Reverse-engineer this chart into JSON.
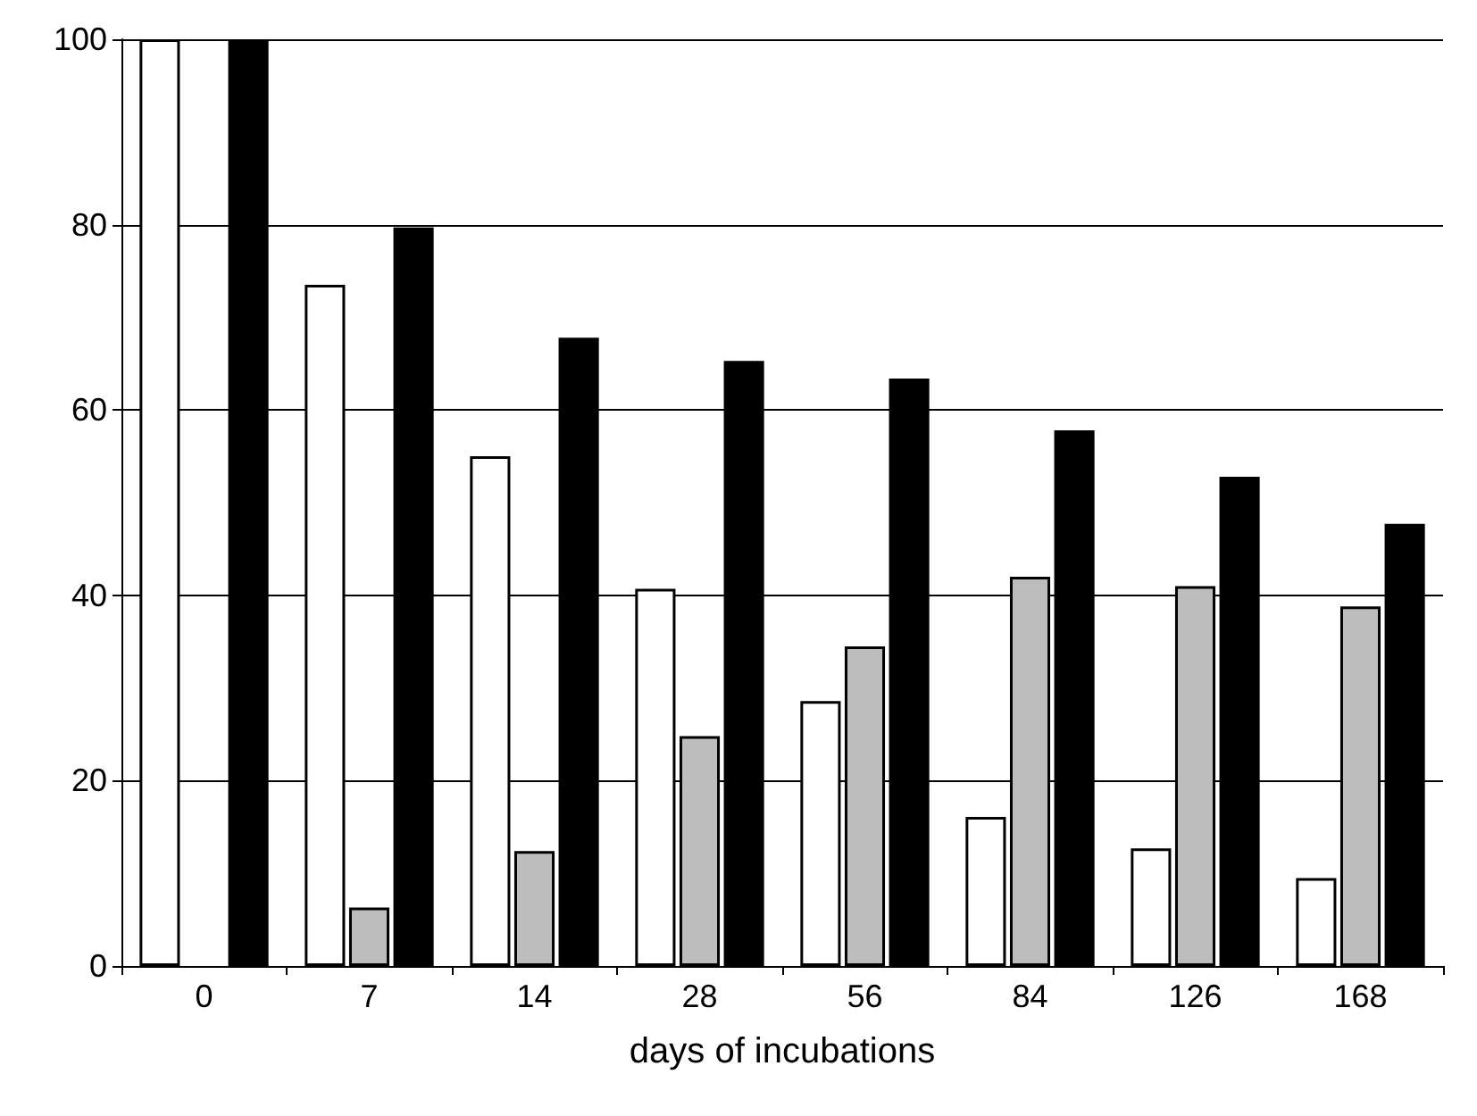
{
  "chart_data": {
    "type": "bar",
    "xlabel": "days of incubations",
    "categories": [
      "0",
      "7",
      "14",
      "28",
      "56",
      "84",
      "126",
      "168"
    ],
    "series": [
      {
        "color": "#ffffff",
        "values": [
          100,
          73.5,
          55,
          40.7,
          28.6,
          16.1,
          12.7,
          9.5
        ]
      },
      {
        "color": "#bdbdbd",
        "values": [
          null,
          6.3,
          12.4,
          24.8,
          34.5,
          42,
          41,
          38.8
        ]
      },
      {
        "color": "#000000",
        "values": [
          100,
          79.7,
          67.8,
          65.3,
          63.4,
          57.8,
          52.8,
          47.7
        ]
      }
    ],
    "ylim": [
      0,
      100
    ],
    "yticks": [
      0,
      20,
      40,
      60,
      80,
      100
    ],
    "grid": "y"
  }
}
